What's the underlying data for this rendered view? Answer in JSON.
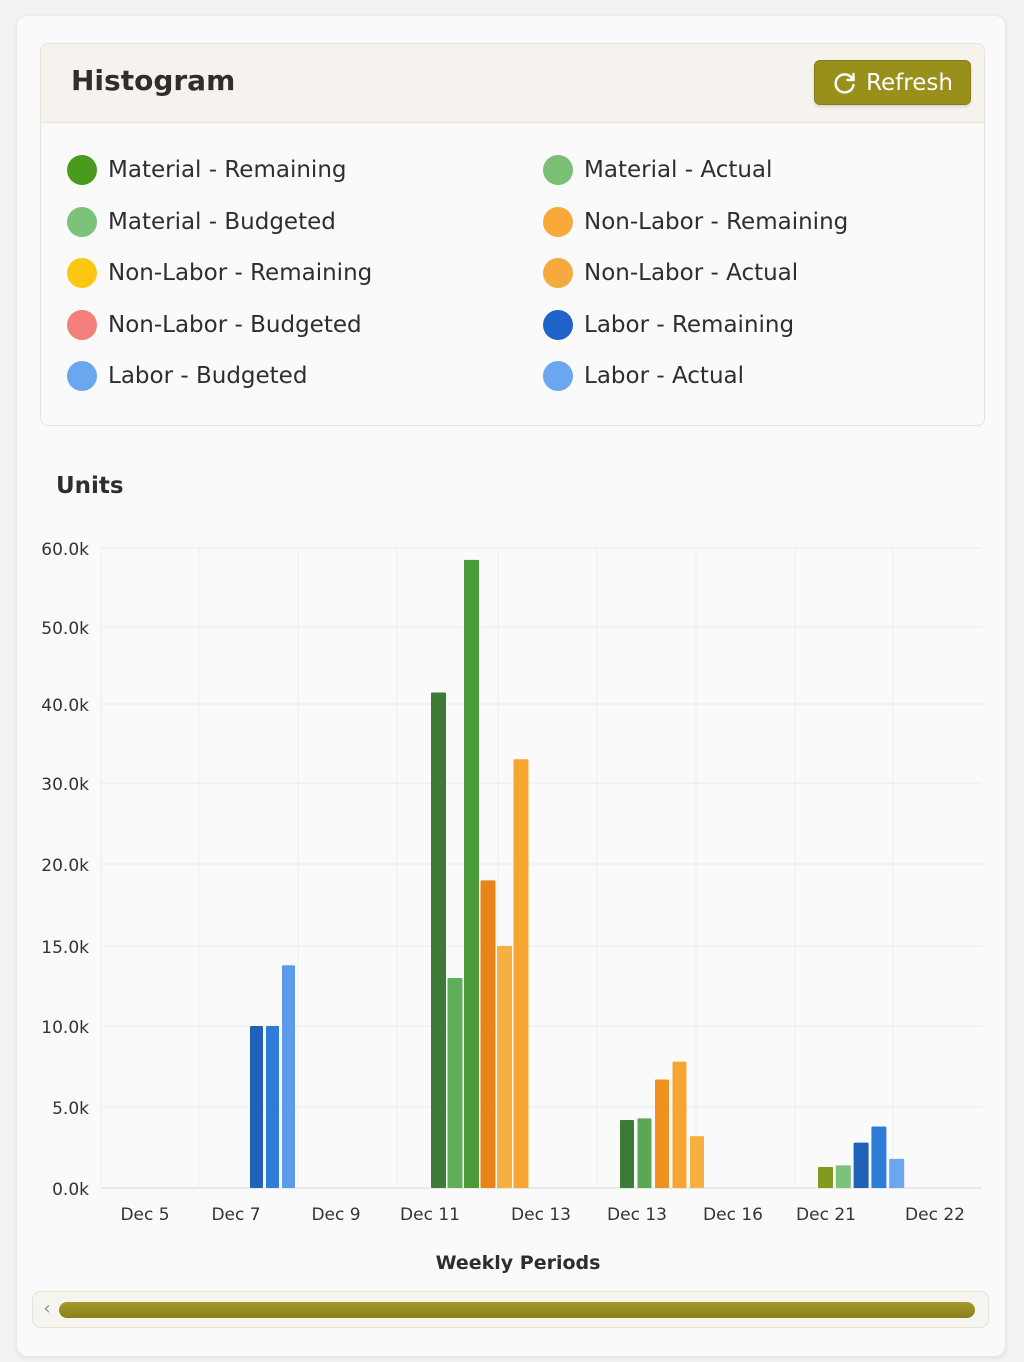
{
  "header": {
    "title": "Histogram",
    "refresh_label": "Refresh"
  },
  "colors": {
    "accent": "#998f1b",
    "scroll_thumb": "#998f1b"
  },
  "legend": [
    {
      "label": "Material - Remaining",
      "color": "#4a9a1e"
    },
    {
      "label": "Material - Actual",
      "color": "#79c074"
    },
    {
      "label": "Material - Budgeted",
      "color": "#7cc27a"
    },
    {
      "label": "Non-Labor - Remaining",
      "color": "#f7a93a"
    },
    {
      "label": "Non-Labor - Remaining",
      "color": "#fcc712"
    },
    {
      "label": "Non-Labor - Actual",
      "color": "#f6a93c"
    },
    {
      "label": "Non-Labor - Budgeted",
      "color": "#f27f7a"
    },
    {
      "label": "Labor - Remaining",
      "color": "#1f62c8"
    },
    {
      "label": "Labor - Budgeted",
      "color": "#6ba7ef"
    },
    {
      "label": "Labor - Actual",
      "color": "#6ba7ef"
    }
  ],
  "chart_data": {
    "type": "bar",
    "ylabel": "Units",
    "xlabel": "Weekly Periods",
    "ylim": [
      0,
      60
    ],
    "yticks": [
      "0.0k",
      "5.0k",
      "10.0k",
      "15.0k",
      "20.0k",
      "30.0k",
      "40.0k",
      "50.0k",
      "60.0k"
    ],
    "categories": [
      "Dec 5",
      "Dec 7",
      "Dec 9",
      "Dec 11",
      "Dec 13",
      "Dec 13",
      "Dec 16",
      "Dec 21",
      "Dec 22"
    ],
    "grid": true,
    "bar_groups": [
      {
        "category": "Dec 7",
        "bars": [
          {
            "value": 10.0,
            "color": "#1f62b8"
          },
          {
            "value": 10.0,
            "color": "#2f7cd8"
          },
          {
            "value": 13.8,
            "color": "#5b9cea"
          }
        ]
      },
      {
        "category": "Dec 11",
        "bars": [
          {
            "value": 41.5,
            "color": "#3d7a35"
          },
          {
            "value": 13.0,
            "color": "#5fae5a"
          },
          {
            "value": 58.5,
            "color": "#4a9a3a"
          },
          {
            "value": 19.0,
            "color": "#e8841a"
          },
          {
            "value": 15.0,
            "color": "#f6b040"
          },
          {
            "value": 33.0,
            "color": "#f5a530"
          }
        ]
      },
      {
        "category": "Dec 13",
        "bars": [
          {
            "value": 4.2,
            "color": "#3d7a35"
          },
          {
            "value": 4.3,
            "color": "#5aa854"
          },
          {
            "value": 6.7,
            "color": "#f0901e"
          },
          {
            "value": 7.8,
            "color": "#f5a530"
          },
          {
            "value": 3.2,
            "color": "#f6b040"
          }
        ]
      },
      {
        "category": "Dec 21",
        "bars": [
          {
            "value": 1.3,
            "color": "#7f9a1f"
          },
          {
            "value": 1.4,
            "color": "#7cc27a"
          },
          {
            "value": 2.8,
            "color": "#1f62b8"
          },
          {
            "value": 3.8,
            "color": "#2f7cd8"
          },
          {
            "value": 1.8,
            "color": "#6ba7ef"
          }
        ]
      }
    ]
  }
}
